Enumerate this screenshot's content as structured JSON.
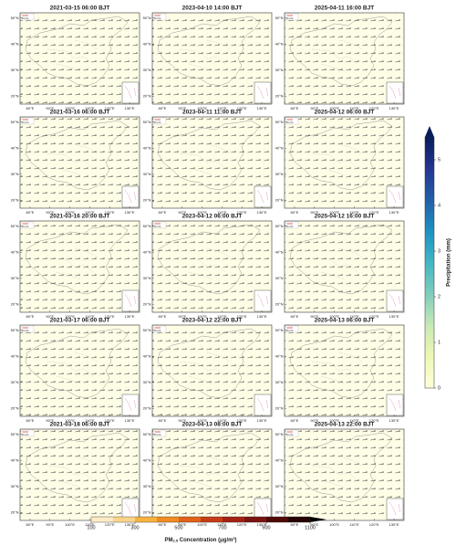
{
  "panels": [
    {
      "title": "2021-03-15 06:00 BJT"
    },
    {
      "title": "2021-03-16 06:00 BJT"
    },
    {
      "title": "2021-03-16 20:00 BJT"
    },
    {
      "title": "2021-03-17 06:00 BJT"
    },
    {
      "title": "2021-03-18 06:00 BJT"
    },
    {
      "title": "2023-04-10 14:00 BJT"
    },
    {
      "title": "2023-04-11 11:00 BJT"
    },
    {
      "title": "2023-04-12 06:00 BJT"
    },
    {
      "title": "2023-04-12 22:00 BJT"
    },
    {
      "title": "2023-04-13 08:00 BJT"
    },
    {
      "title": "2025-04-11 16:00 BJT"
    },
    {
      "title": "2025-04-12 06:00 BJT"
    },
    {
      "title": "2025-04-12 16:00 BJT"
    },
    {
      "title": "2025-04-13 06:00 BJT"
    },
    {
      "title": "2025-04-13 22:00 BJT"
    }
  ],
  "wind_scale_label": "8 m/s",
  "xlim": [
    75,
    135
  ],
  "ylim": [
    17,
    52
  ],
  "xticks": [
    {
      "value": 80,
      "label": "80°E"
    },
    {
      "value": 90,
      "label": "90°E"
    },
    {
      "value": 100,
      "label": "100°E"
    },
    {
      "value": 110,
      "label": "110°E"
    },
    {
      "value": 120,
      "label": "120°E"
    },
    {
      "value": 130,
      "label": "130°E"
    }
  ],
  "yticks": [
    {
      "value": 20,
      "label": "20°N"
    },
    {
      "value": 30,
      "label": "30°N"
    },
    {
      "value": 40,
      "label": "40°N"
    },
    {
      "value": 50,
      "label": "50°N"
    }
  ],
  "precip_colorbar": {
    "label": "Precipitation (mm)",
    "lim": [
      0,
      5.5
    ],
    "ticks": [
      0,
      1,
      2,
      3,
      4,
      5
    ],
    "colors": [
      "#ffffd9",
      "#edf8b1",
      "#c7e9b4",
      "#7fcdbb",
      "#41b6c4",
      "#1d91c0",
      "#225ea8",
      "#253494",
      "#081d58"
    ]
  },
  "pm_colorbar": {
    "label_prefix": "PM",
    "label_sub": "2.5",
    "label_suffix": " Concentration (μg/m³)",
    "lim": [
      100,
      1100
    ],
    "ticks": [
      100,
      300,
      500,
      700,
      900,
      1100
    ],
    "bounds": [
      100,
      200,
      300,
      400,
      500,
      600,
      700,
      800,
      900,
      1000,
      1100
    ],
    "colors": [
      "#fdebc6",
      "#fbd48a",
      "#f7b23f",
      "#f08c22",
      "#e2621b",
      "#c63c16",
      "#a32213",
      "#7a1410",
      "#4f0a08",
      "#250303"
    ]
  }
}
